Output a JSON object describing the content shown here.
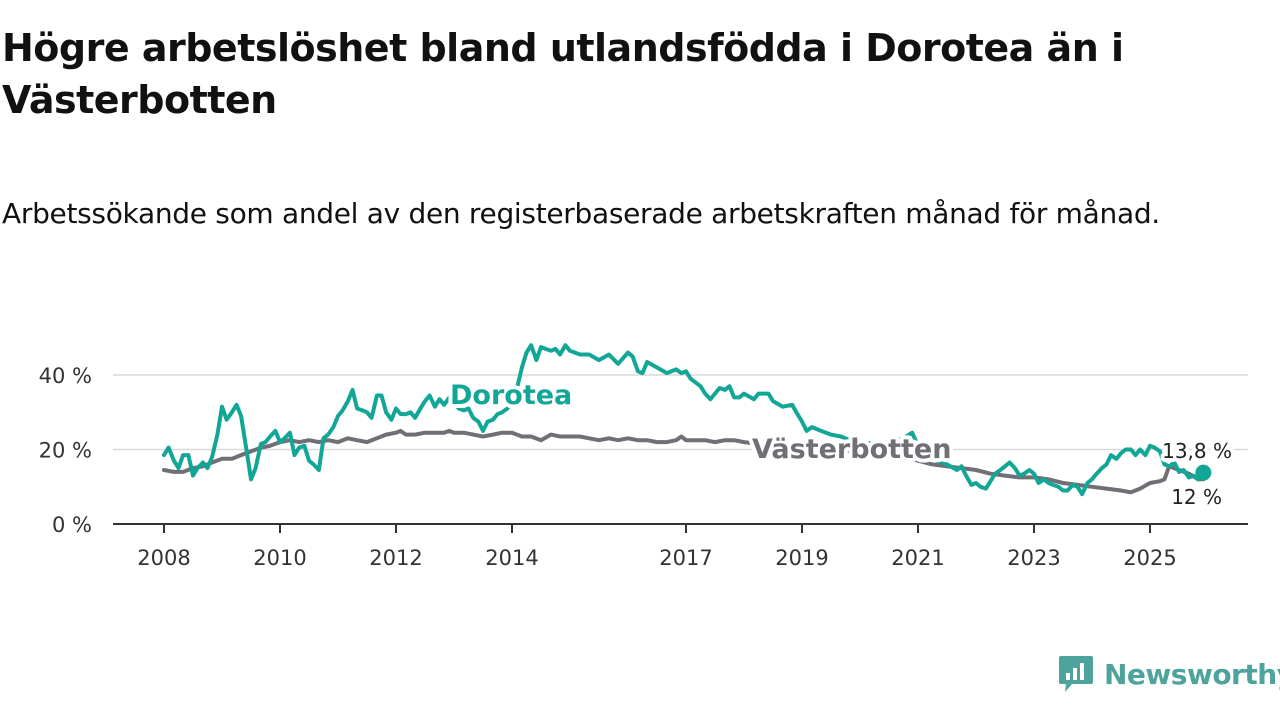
{
  "title": "Högre arbetslöshet bland utlandsfödda i Dorotea än i Västerbotten",
  "subtitle": "Arbetssökande som andel av den registerbaserade arbetskraften månad för månad.",
  "brand": "Newsworthy",
  "colors": {
    "dorotea": "#12a697",
    "vasterbotten": "#6f6f75",
    "brand": "#4ea39c"
  },
  "chart_data": {
    "type": "line",
    "title": "Högre arbetslöshet bland utlandsfödda i Dorotea än i Västerbotten",
    "xlabel": "",
    "ylabel": "",
    "xlim": [
      2008,
      2026.3
    ],
    "ylim": [
      0,
      50
    ],
    "y_ticks": [
      0,
      20,
      40
    ],
    "y_tick_labels": [
      "0 %",
      "20 %",
      "40 %"
    ],
    "x_ticks": [
      2008,
      2010,
      2012,
      2014,
      2017,
      2019,
      2021,
      2023,
      2025
    ],
    "x_tick_labels": [
      "2008",
      "2010",
      "2012",
      "2014",
      "2017",
      "2019",
      "2021",
      "2023",
      "2025"
    ],
    "series": [
      {
        "name": "Dorotea",
        "label": "Dorotea",
        "end_label": "13,8 %",
        "points": [
          [
            2008.0,
            18.5
          ],
          [
            2008.08,
            20.5
          ],
          [
            2008.17,
            17
          ],
          [
            2008.25,
            15
          ],
          [
            2008.33,
            18.5
          ],
          [
            2008.42,
            18.5
          ],
          [
            2008.5,
            13
          ],
          [
            2008.58,
            15
          ],
          [
            2008.67,
            16.5
          ],
          [
            2008.75,
            15
          ],
          [
            2008.83,
            18
          ],
          [
            2008.92,
            24
          ],
          [
            2009.0,
            31.5
          ],
          [
            2009.08,
            28
          ],
          [
            2009.17,
            30
          ],
          [
            2009.25,
            32
          ],
          [
            2009.33,
            29
          ],
          [
            2009.42,
            20
          ],
          [
            2009.5,
            12
          ],
          [
            2009.58,
            15
          ],
          [
            2009.67,
            21.5
          ],
          [
            2009.75,
            22
          ],
          [
            2009.83,
            23.5
          ],
          [
            2009.92,
            25
          ],
          [
            2010.0,
            22
          ],
          [
            2010.08,
            23
          ],
          [
            2010.17,
            24.5
          ],
          [
            2010.25,
            18.5
          ],
          [
            2010.33,
            20.5
          ],
          [
            2010.42,
            21
          ],
          [
            2010.5,
            17
          ],
          [
            2010.58,
            16
          ],
          [
            2010.67,
            14.5
          ],
          [
            2010.75,
            23
          ],
          [
            2010.83,
            24
          ],
          [
            2010.92,
            26
          ],
          [
            2011.0,
            29
          ],
          [
            2011.08,
            30.5
          ],
          [
            2011.17,
            33
          ],
          [
            2011.25,
            36
          ],
          [
            2011.33,
            31
          ],
          [
            2011.42,
            30.5
          ],
          [
            2011.5,
            30
          ],
          [
            2011.58,
            28.5
          ],
          [
            2011.67,
            34.5
          ],
          [
            2011.75,
            34.5
          ],
          [
            2011.83,
            30
          ],
          [
            2011.92,
            28
          ],
          [
            2012.0,
            31
          ],
          [
            2012.08,
            29.5
          ],
          [
            2012.17,
            29.5
          ],
          [
            2012.25,
            30
          ],
          [
            2012.33,
            28.5
          ],
          [
            2012.42,
            31
          ],
          [
            2012.5,
            33
          ],
          [
            2012.58,
            34.5
          ],
          [
            2012.67,
            31.5
          ],
          [
            2012.75,
            33.5
          ],
          [
            2012.83,
            32
          ],
          [
            2012.92,
            34
          ],
          [
            2013.0,
            33
          ],
          [
            2013.08,
            31
          ],
          [
            2013.17,
            30.5
          ],
          [
            2013.25,
            31
          ],
          [
            2013.33,
            28.5
          ],
          [
            2013.42,
            27.5
          ],
          [
            2013.5,
            25
          ],
          [
            2013.58,
            27.5
          ],
          [
            2013.67,
            28
          ],
          [
            2013.75,
            29.5
          ],
          [
            2013.83,
            30
          ],
          [
            2013.92,
            31
          ],
          [
            2014.0,
            33
          ],
          [
            2014.08,
            36
          ],
          [
            2014.17,
            42
          ],
          [
            2014.25,
            46
          ],
          [
            2014.33,
            48
          ],
          [
            2014.42,
            44
          ],
          [
            2014.5,
            47.5
          ],
          [
            2014.58,
            47
          ],
          [
            2014.67,
            46.5
          ],
          [
            2014.75,
            47
          ],
          [
            2014.83,
            45.5
          ],
          [
            2014.92,
            48
          ],
          [
            2015.0,
            46.5
          ],
          [
            2015.17,
            45.5
          ],
          [
            2015.33,
            45.5
          ],
          [
            2015.5,
            44
          ],
          [
            2015.67,
            45.5
          ],
          [
            2015.83,
            43
          ],
          [
            2016.0,
            46
          ],
          [
            2016.08,
            45
          ],
          [
            2016.17,
            41
          ],
          [
            2016.25,
            40.5
          ],
          [
            2016.33,
            43.5
          ],
          [
            2016.5,
            42
          ],
          [
            2016.67,
            40.5
          ],
          [
            2016.83,
            41.5
          ],
          [
            2016.92,
            40.5
          ],
          [
            2017.0,
            41
          ],
          [
            2017.08,
            39
          ],
          [
            2017.25,
            37
          ],
          [
            2017.33,
            35
          ],
          [
            2017.42,
            33.5
          ],
          [
            2017.5,
            35
          ],
          [
            2017.58,
            36.5
          ],
          [
            2017.67,
            36
          ],
          [
            2017.75,
            37
          ],
          [
            2017.83,
            34
          ],
          [
            2017.92,
            34
          ],
          [
            2018.0,
            35
          ],
          [
            2018.17,
            33.5
          ],
          [
            2018.25,
            35
          ],
          [
            2018.42,
            35
          ],
          [
            2018.5,
            33
          ],
          [
            2018.67,
            31.5
          ],
          [
            2018.83,
            32
          ],
          [
            2018.92,
            29.5
          ],
          [
            2019.0,
            27.5
          ],
          [
            2019.08,
            25
          ],
          [
            2019.17,
            26
          ],
          [
            2019.33,
            25
          ],
          [
            2019.5,
            24
          ],
          [
            2019.67,
            23.5
          ],
          [
            2019.83,
            22.5
          ],
          [
            2020.0,
            22
          ],
          [
            2020.25,
            21.5
          ],
          [
            2020.5,
            22
          ],
          [
            2020.75,
            23
          ],
          [
            2020.9,
            24.5
          ],
          [
            2021.0,
            21
          ],
          [
            2021.17,
            18
          ],
          [
            2021.33,
            17
          ],
          [
            2021.5,
            16
          ],
          [
            2021.67,
            14.5
          ],
          [
            2021.75,
            15.5
          ],
          [
            2021.83,
            13
          ],
          [
            2021.92,
            10.5
          ],
          [
            2022.0,
            11
          ],
          [
            2022.08,
            10
          ],
          [
            2022.17,
            9.5
          ],
          [
            2022.25,
            11.5
          ],
          [
            2022.33,
            13.5
          ],
          [
            2022.42,
            14.5
          ],
          [
            2022.5,
            15.5
          ],
          [
            2022.58,
            16.5
          ],
          [
            2022.67,
            15
          ],
          [
            2022.75,
            13
          ],
          [
            2022.83,
            13.5
          ],
          [
            2022.92,
            14.5
          ],
          [
            2023.0,
            13.5
          ],
          [
            2023.08,
            11
          ],
          [
            2023.17,
            12
          ],
          [
            2023.25,
            11
          ],
          [
            2023.33,
            10.5
          ],
          [
            2023.42,
            10
          ],
          [
            2023.5,
            9
          ],
          [
            2023.58,
            9
          ],
          [
            2023.67,
            10.5
          ],
          [
            2023.75,
            10
          ],
          [
            2023.83,
            8
          ],
          [
            2023.92,
            11
          ],
          [
            2024.0,
            12
          ],
          [
            2024.08,
            13.5
          ],
          [
            2024.17,
            15
          ],
          [
            2024.25,
            16
          ],
          [
            2024.33,
            18.5
          ],
          [
            2024.42,
            17.5
          ],
          [
            2024.5,
            19
          ],
          [
            2024.58,
            20
          ],
          [
            2024.67,
            20
          ],
          [
            2024.75,
            18.5
          ],
          [
            2024.83,
            20
          ],
          [
            2024.92,
            18.5
          ],
          [
            2025.0,
            21
          ],
          [
            2025.08,
            20.5
          ],
          [
            2025.17,
            19.5
          ],
          [
            2025.25,
            16
          ],
          [
            2025.33,
            15.5
          ],
          [
            2025.42,
            16.5
          ],
          [
            2025.5,
            14
          ],
          [
            2025.58,
            14.5
          ],
          [
            2025.67,
            12.5
          ],
          [
            2025.75,
            13
          ],
          [
            2025.83,
            12
          ],
          [
            2025.92,
            13.8
          ]
        ]
      },
      {
        "name": "Västerbotten",
        "label": "Västerbotten",
        "end_label": "12 %",
        "points": [
          [
            2008.0,
            14.5
          ],
          [
            2008.17,
            14
          ],
          [
            2008.33,
            14
          ],
          [
            2008.5,
            15
          ],
          [
            2008.67,
            15.5
          ],
          [
            2008.83,
            16.5
          ],
          [
            2009.0,
            17.5
          ],
          [
            2009.17,
            17.5
          ],
          [
            2009.33,
            18.5
          ],
          [
            2009.5,
            19.5
          ],
          [
            2009.67,
            20.5
          ],
          [
            2009.83,
            21
          ],
          [
            2010.0,
            22
          ],
          [
            2010.17,
            22.5
          ],
          [
            2010.33,
            22
          ],
          [
            2010.5,
            22.5
          ],
          [
            2010.67,
            22
          ],
          [
            2010.83,
            22.5
          ],
          [
            2011.0,
            22
          ],
          [
            2011.17,
            23
          ],
          [
            2011.33,
            22.5
          ],
          [
            2011.5,
            22
          ],
          [
            2011.67,
            23
          ],
          [
            2011.83,
            24
          ],
          [
            2012.0,
            24.5
          ],
          [
            2012.08,
            25
          ],
          [
            2012.17,
            24
          ],
          [
            2012.33,
            24
          ],
          [
            2012.5,
            24.5
          ],
          [
            2012.67,
            24.5
          ],
          [
            2012.83,
            24.5
          ],
          [
            2012.92,
            25
          ],
          [
            2013.0,
            24.5
          ],
          [
            2013.17,
            24.5
          ],
          [
            2013.33,
            24
          ],
          [
            2013.5,
            23.5
          ],
          [
            2013.67,
            24
          ],
          [
            2013.83,
            24.5
          ],
          [
            2014.0,
            24.5
          ],
          [
            2014.17,
            23.5
          ],
          [
            2014.33,
            23.5
          ],
          [
            2014.5,
            22.5
          ],
          [
            2014.67,
            24
          ],
          [
            2014.83,
            23.5
          ],
          [
            2015.0,
            23.5
          ],
          [
            2015.17,
            23.5
          ],
          [
            2015.33,
            23
          ],
          [
            2015.5,
            22.5
          ],
          [
            2015.67,
            23
          ],
          [
            2015.83,
            22.5
          ],
          [
            2016.0,
            23
          ],
          [
            2016.17,
            22.5
          ],
          [
            2016.33,
            22.5
          ],
          [
            2016.5,
            22
          ],
          [
            2016.67,
            22
          ],
          [
            2016.83,
            22.5
          ],
          [
            2016.92,
            23.5
          ],
          [
            2017.0,
            22.5
          ],
          [
            2017.17,
            22.5
          ],
          [
            2017.33,
            22.5
          ],
          [
            2017.5,
            22
          ],
          [
            2017.67,
            22.5
          ],
          [
            2017.83,
            22.5
          ],
          [
            2018.0,
            22
          ],
          [
            2018.25,
            21.5
          ],
          [
            2018.5,
            21
          ],
          [
            2018.75,
            21
          ],
          [
            2019.0,
            20.5
          ],
          [
            2019.25,
            20
          ],
          [
            2019.5,
            20
          ],
          [
            2019.75,
            19.5
          ],
          [
            2020.0,
            19.5
          ],
          [
            2020.25,
            19
          ],
          [
            2020.5,
            18.5
          ],
          [
            2020.75,
            18
          ],
          [
            2021.0,
            17
          ],
          [
            2021.25,
            16
          ],
          [
            2021.5,
            15.5
          ],
          [
            2021.75,
            15
          ],
          [
            2022.0,
            14.5
          ],
          [
            2022.25,
            13.5
          ],
          [
            2022.5,
            13
          ],
          [
            2022.75,
            12.5
          ],
          [
            2023.0,
            12.5
          ],
          [
            2023.25,
            12
          ],
          [
            2023.5,
            11
          ],
          [
            2023.75,
            10.5
          ],
          [
            2024.0,
            10
          ],
          [
            2024.25,
            9.5
          ],
          [
            2024.5,
            9
          ],
          [
            2024.67,
            8.5
          ],
          [
            2024.83,
            9.5
          ],
          [
            2025.0,
            11
          ],
          [
            2025.17,
            11.5
          ],
          [
            2025.25,
            12
          ],
          [
            2025.33,
            15.5
          ],
          [
            2025.5,
            14.5
          ],
          [
            2025.67,
            13.5
          ],
          [
            2025.83,
            12
          ],
          [
            2025.92,
            12
          ]
        ]
      }
    ]
  }
}
